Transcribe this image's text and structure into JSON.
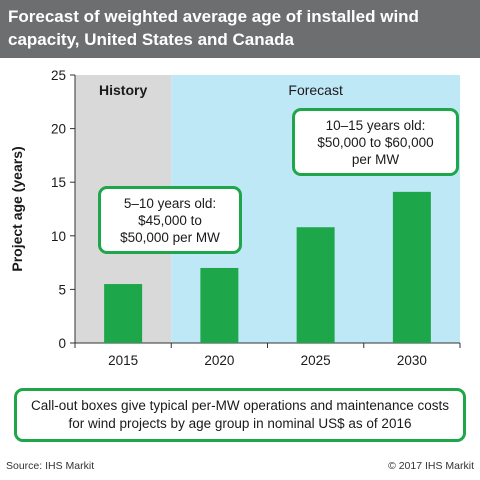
{
  "header": {
    "title": "Forecast of weighted average age of installed wind capacity, United States and Canada"
  },
  "chart_data": {
    "type": "bar",
    "categories": [
      "2015",
      "2020",
      "2025",
      "2030"
    ],
    "values": [
      5.5,
      7.0,
      10.8,
      14.1
    ],
    "ylabel": "Project age (years)",
    "xlabel": "",
    "ylim": [
      0,
      25
    ],
    "yticks": [
      0,
      5,
      10,
      15,
      20,
      25
    ],
    "grid": false,
    "regions": [
      {
        "label": "History",
        "start": "2015",
        "end": "2015",
        "color": "#d9d9d9"
      },
      {
        "label": "Forecast",
        "start": "2020",
        "end": "2030",
        "color": "#bfe8f7"
      }
    ],
    "colors": {
      "bar": "#1ea64a",
      "callout_border": "#1ea64a"
    },
    "annotations": [
      {
        "text": "5–10 years old:\n$45,000 to\n$50,000 per MW"
      },
      {
        "text": "10–15 years old:\n$50,000 to $60,000\nper MW"
      }
    ]
  },
  "footnote": "Call-out boxes give typical per-MW operations and maintenance costs for wind projects by age group in nominal US$ as of 2016",
  "source": "Source: IHS Markit",
  "copyright": "© 2017 IHS Markit"
}
